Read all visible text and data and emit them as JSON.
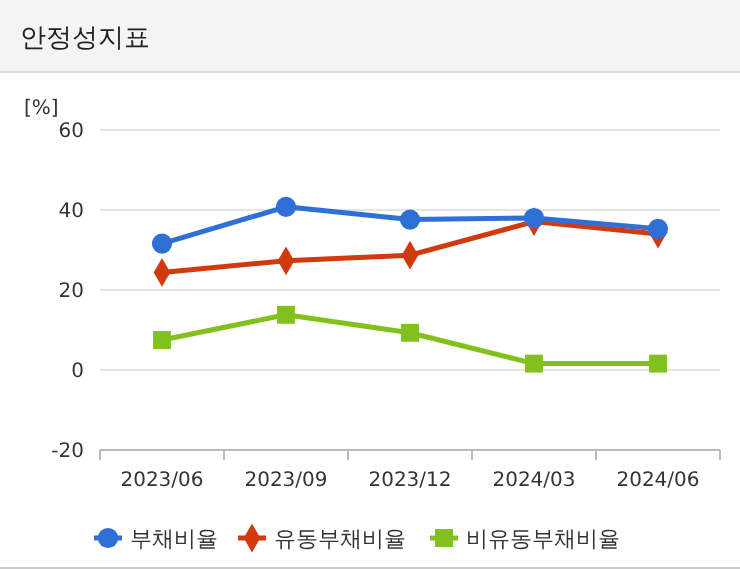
{
  "chart_data": {
    "type": "line",
    "title": "안정성지표",
    "ylabel": "[%]",
    "categories": [
      "2023/06",
      "2023/09",
      "2023/12",
      "2024/03",
      "2024/06"
    ],
    "series": [
      {
        "name": "부채비율",
        "color": "#2f6fd6",
        "marker": "circle",
        "values": [
          31.6,
          40.8,
          37.6,
          38.0,
          35.3
        ]
      },
      {
        "name": "유동부채비율",
        "color": "#d13a0f",
        "marker": "diamond",
        "values": [
          24.4,
          27.3,
          28.7,
          37.1,
          34.0
        ]
      },
      {
        "name": "비유동부채비율",
        "color": "#82c11c",
        "marker": "square",
        "values": [
          7.5,
          13.8,
          9.3,
          1.6,
          1.6
        ]
      }
    ],
    "ylim": [
      -20,
      60
    ],
    "yticks": [
      -20,
      0,
      20,
      40,
      60
    ],
    "grid": "y",
    "legend": "bottom"
  }
}
